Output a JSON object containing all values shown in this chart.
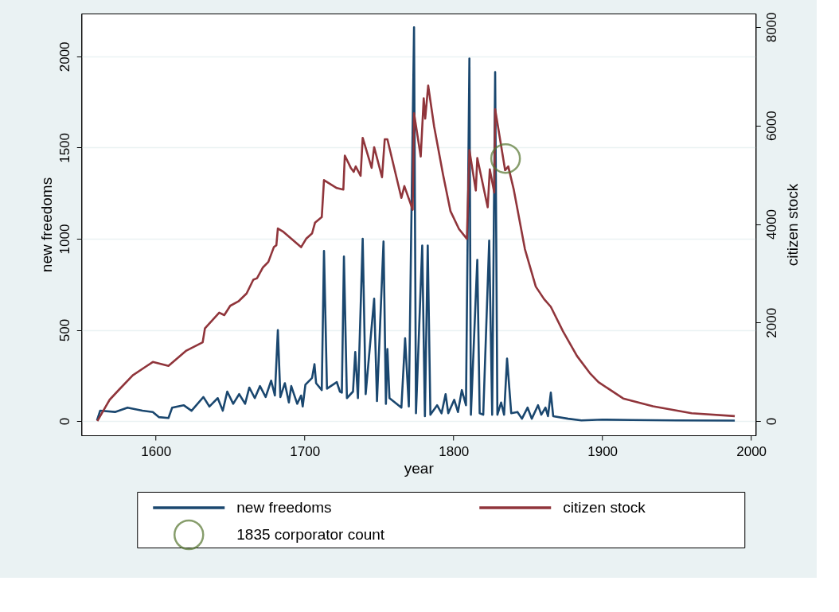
{
  "chart_data": {
    "type": "line",
    "xlabel": "year",
    "ylabel": "new freedoms",
    "y2label": "citizen stock",
    "xlim": [
      1550,
      2003
    ],
    "xticks": [
      1600,
      1700,
      1800,
      1900,
      2000
    ],
    "ylim": [
      -78,
      2235
    ],
    "yticks": [
      0,
      500,
      1000,
      1500,
      2000
    ],
    "y2lim": [
      -289,
      8273
    ],
    "y2ticks": [
      0,
      2000,
      4000,
      6000,
      8000
    ],
    "grid": "y",
    "legend": "bottom",
    "series": [
      {
        "name": "new freedoms",
        "color": "#1a476f",
        "x": [
          1560.5,
          1562.6,
          1572.6,
          1581,
          1591,
          1598,
          1602,
          1608.5,
          1611,
          1618.7,
          1624,
          1632,
          1636,
          1641.6,
          1645,
          1648,
          1652,
          1656,
          1660,
          1662.8,
          1666.5,
          1670,
          1673.8,
          1677.5,
          1680,
          1682,
          1683.7,
          1686.7,
          1689.4,
          1691,
          1695,
          1697.6,
          1698.7,
          1700.5,
          1705,
          1706.6,
          1707.7,
          1711.5,
          1713,
          1715,
          1721.6,
          1723.7,
          1725,
          1726.4,
          1728.4,
          1732.5,
          1734,
          1735.8,
          1739,
          1741,
          1746.7,
          1748.6,
          1753,
          1754.6,
          1755.6,
          1757,
          1765,
          1767.5,
          1770,
          1773.5,
          1774.8,
          1779,
          1780.8,
          1782.7,
          1784.5,
          1789,
          1792,
          1794.7,
          1796.5,
          1800.5,
          1803,
          1805.6,
          1808.4,
          1810.7,
          1811.7,
          1816,
          1817.6,
          1820,
          1824,
          1826,
          1828,
          1829.5,
          1832,
          1834,
          1836,
          1838.8,
          1843,
          1846,
          1849.8,
          1852.6,
          1856.8,
          1859,
          1861.8,
          1863.5,
          1865.4,
          1867,
          1877,
          1886,
          1900,
          1920,
          1950,
          1989
        ],
        "values": [
          4,
          57,
          50,
          74,
          57,
          50,
          22,
          17,
          74,
          87,
          57,
          132,
          80,
          126,
          57,
          162,
          95,
          148,
          95,
          184,
          126,
          192,
          132,
          222,
          140,
          499,
          132,
          208,
          102,
          192,
          95,
          140,
          80,
          200,
          237,
          312,
          208,
          170,
          933,
          178,
          214,
          162,
          156,
          903,
          126,
          162,
          379,
          126,
          1000,
          148,
          671,
          110,
          985,
          95,
          395,
          126,
          74,
          454,
          80,
          2160,
          43,
          963,
          27,
          963,
          35,
          87,
          43,
          148,
          43,
          117,
          50,
          170,
          87,
          1988,
          35,
          884,
          43,
          35,
          990,
          35,
          1914,
          35,
          102,
          35,
          343,
          43,
          50,
          13,
          74,
          13,
          87,
          35,
          74,
          27,
          156,
          27,
          13,
          4,
          8,
          6,
          4,
          3
        ]
      },
      {
        "name": "citizen stock",
        "color": "#90353b",
        "axis": "y2",
        "x": [
          1560.7,
          1569,
          1576,
          1584.5,
          1593,
          1598,
          1608.5,
          1620.5,
          1631.5,
          1633,
          1642.6,
          1646,
          1650,
          1655.5,
          1661,
          1665.5,
          1668,
          1672,
          1675.6,
          1679.3,
          1681,
          1682,
          1685.8,
          1690,
          1697.6,
          1701,
          1705,
          1707,
          1711.5,
          1713,
          1721.6,
          1726,
          1727,
          1731,
          1733,
          1734.3,
          1737.6,
          1739,
          1745,
          1746.7,
          1752,
          1753.8,
          1755.6,
          1765,
          1767,
          1772.6,
          1773.5,
          1778,
          1780,
          1781,
          1783,
          1787,
          1793,
          1798,
          1803.7,
          1809,
          1810.7,
          1815,
          1816,
          1823,
          1824.4,
          1827.4,
          1828,
          1832,
          1834.7,
          1836.8,
          1840.5,
          1848,
          1855.3,
          1860.8,
          1865.4,
          1873.6,
          1883,
          1892,
          1897.4,
          1914,
          1934,
          1960,
          1989
        ],
        "values": [
          0,
          434,
          660,
          930,
          1100,
          1200,
          1120,
          1430,
          1600,
          1880,
          2200,
          2150,
          2340,
          2430,
          2590,
          2870,
          2900,
          3120,
          3230,
          3530,
          3570,
          3910,
          3840,
          3730,
          3530,
          3700,
          3810,
          4030,
          4140,
          4890,
          4730,
          4700,
          5390,
          5140,
          5060,
          5170,
          4980,
          5750,
          5140,
          5560,
          4950,
          5720,
          5720,
          4530,
          4770,
          4290,
          6250,
          5370,
          6550,
          6140,
          6810,
          5980,
          5000,
          4260,
          3900,
          3700,
          5500,
          4680,
          5340,
          4340,
          5110,
          4640,
          6330,
          5590,
          5090,
          5170,
          4700,
          3490,
          2730,
          2480,
          2320,
          1820,
          1320,
          960,
          790,
          460,
          300,
          160,
          100
        ]
      },
      {
        "name": "1835 corporator count",
        "type": "scatter",
        "marker": "circle",
        "axis": "y2",
        "color": "#55752f",
        "x": [
          1835
        ],
        "values": [
          5330
        ]
      }
    ]
  }
}
